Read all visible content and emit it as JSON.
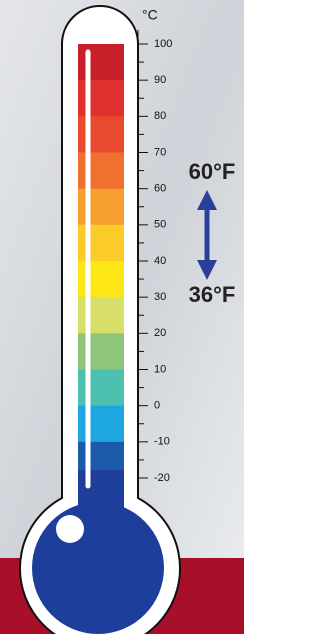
{
  "scale": {
    "unit": "°C",
    "range": [
      -20,
      100
    ],
    "ticks": [
      100,
      90,
      80,
      70,
      60,
      50,
      40,
      30,
      20,
      10,
      0,
      -10,
      -20
    ]
  },
  "annotations": {
    "upper": "60°F",
    "lower": "36°F"
  }
}
